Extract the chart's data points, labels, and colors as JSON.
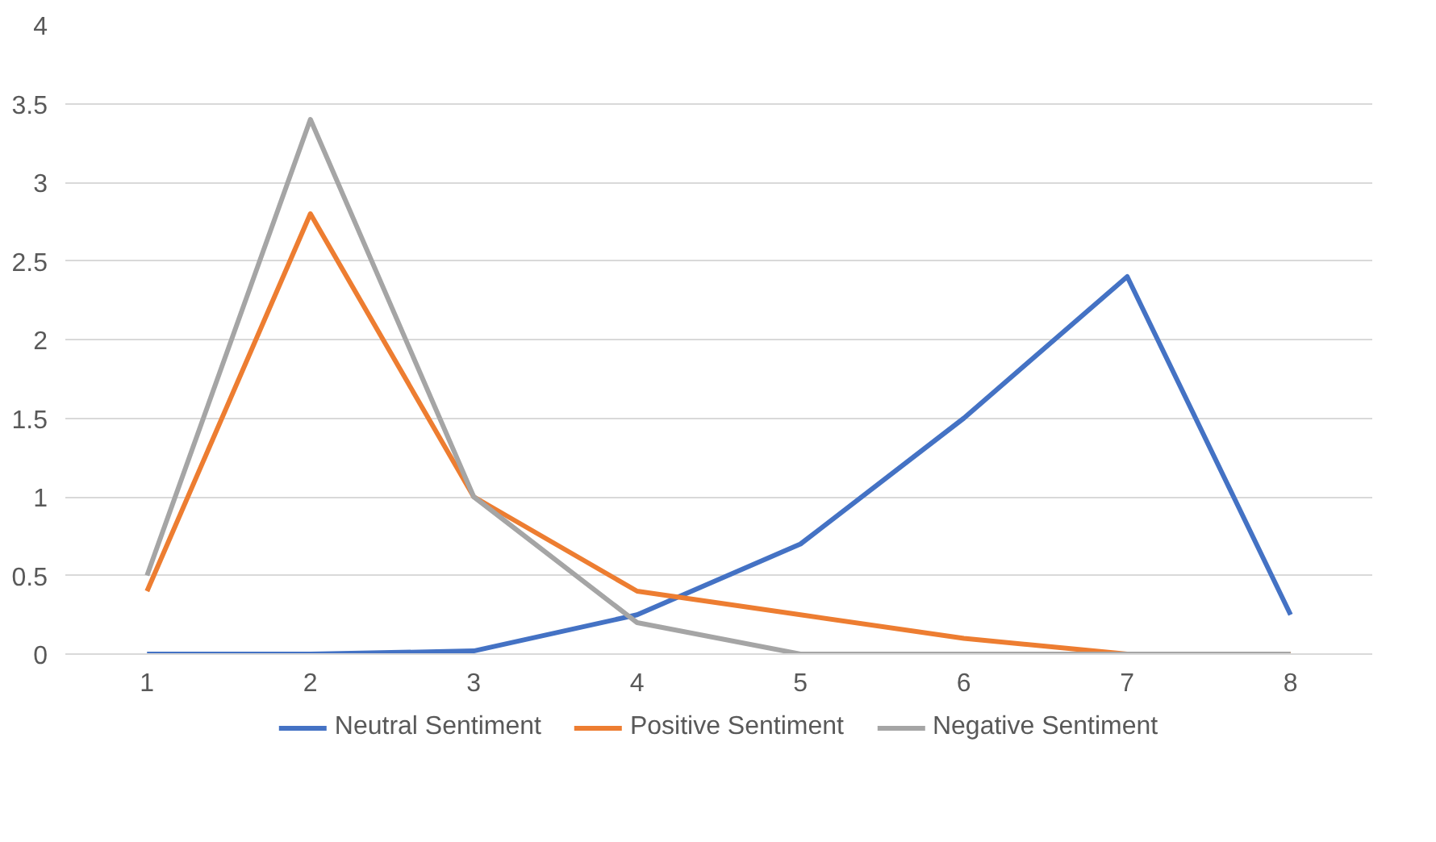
{
  "chart_data": {
    "type": "line",
    "categories": [
      "1",
      "2",
      "3",
      "4",
      "5",
      "6",
      "7",
      "8"
    ],
    "series": [
      {
        "name": "Neutral Sentiment",
        "color": "#4472c4",
        "values": [
          0,
          0,
          0.02,
          0.25,
          0.7,
          1.5,
          2.4,
          0.25
        ]
      },
      {
        "name": "Positive Sentiment",
        "color": "#ed7d31",
        "values": [
          0.4,
          2.8,
          1.0,
          0.4,
          0.25,
          0.1,
          0,
          0
        ]
      },
      {
        "name": "Negative Sentiment",
        "color": "#a5a5a5",
        "values": [
          0.5,
          3.4,
          1.0,
          0.2,
          0,
          0,
          0,
          0
        ]
      }
    ],
    "ylim": [
      0,
      4
    ],
    "yticks": [
      0,
      0.5,
      1,
      1.5,
      2,
      2.5,
      3,
      3.5,
      4
    ],
    "grid": "y",
    "legend": "bottom",
    "marker": "none",
    "line_style": "solid"
  }
}
